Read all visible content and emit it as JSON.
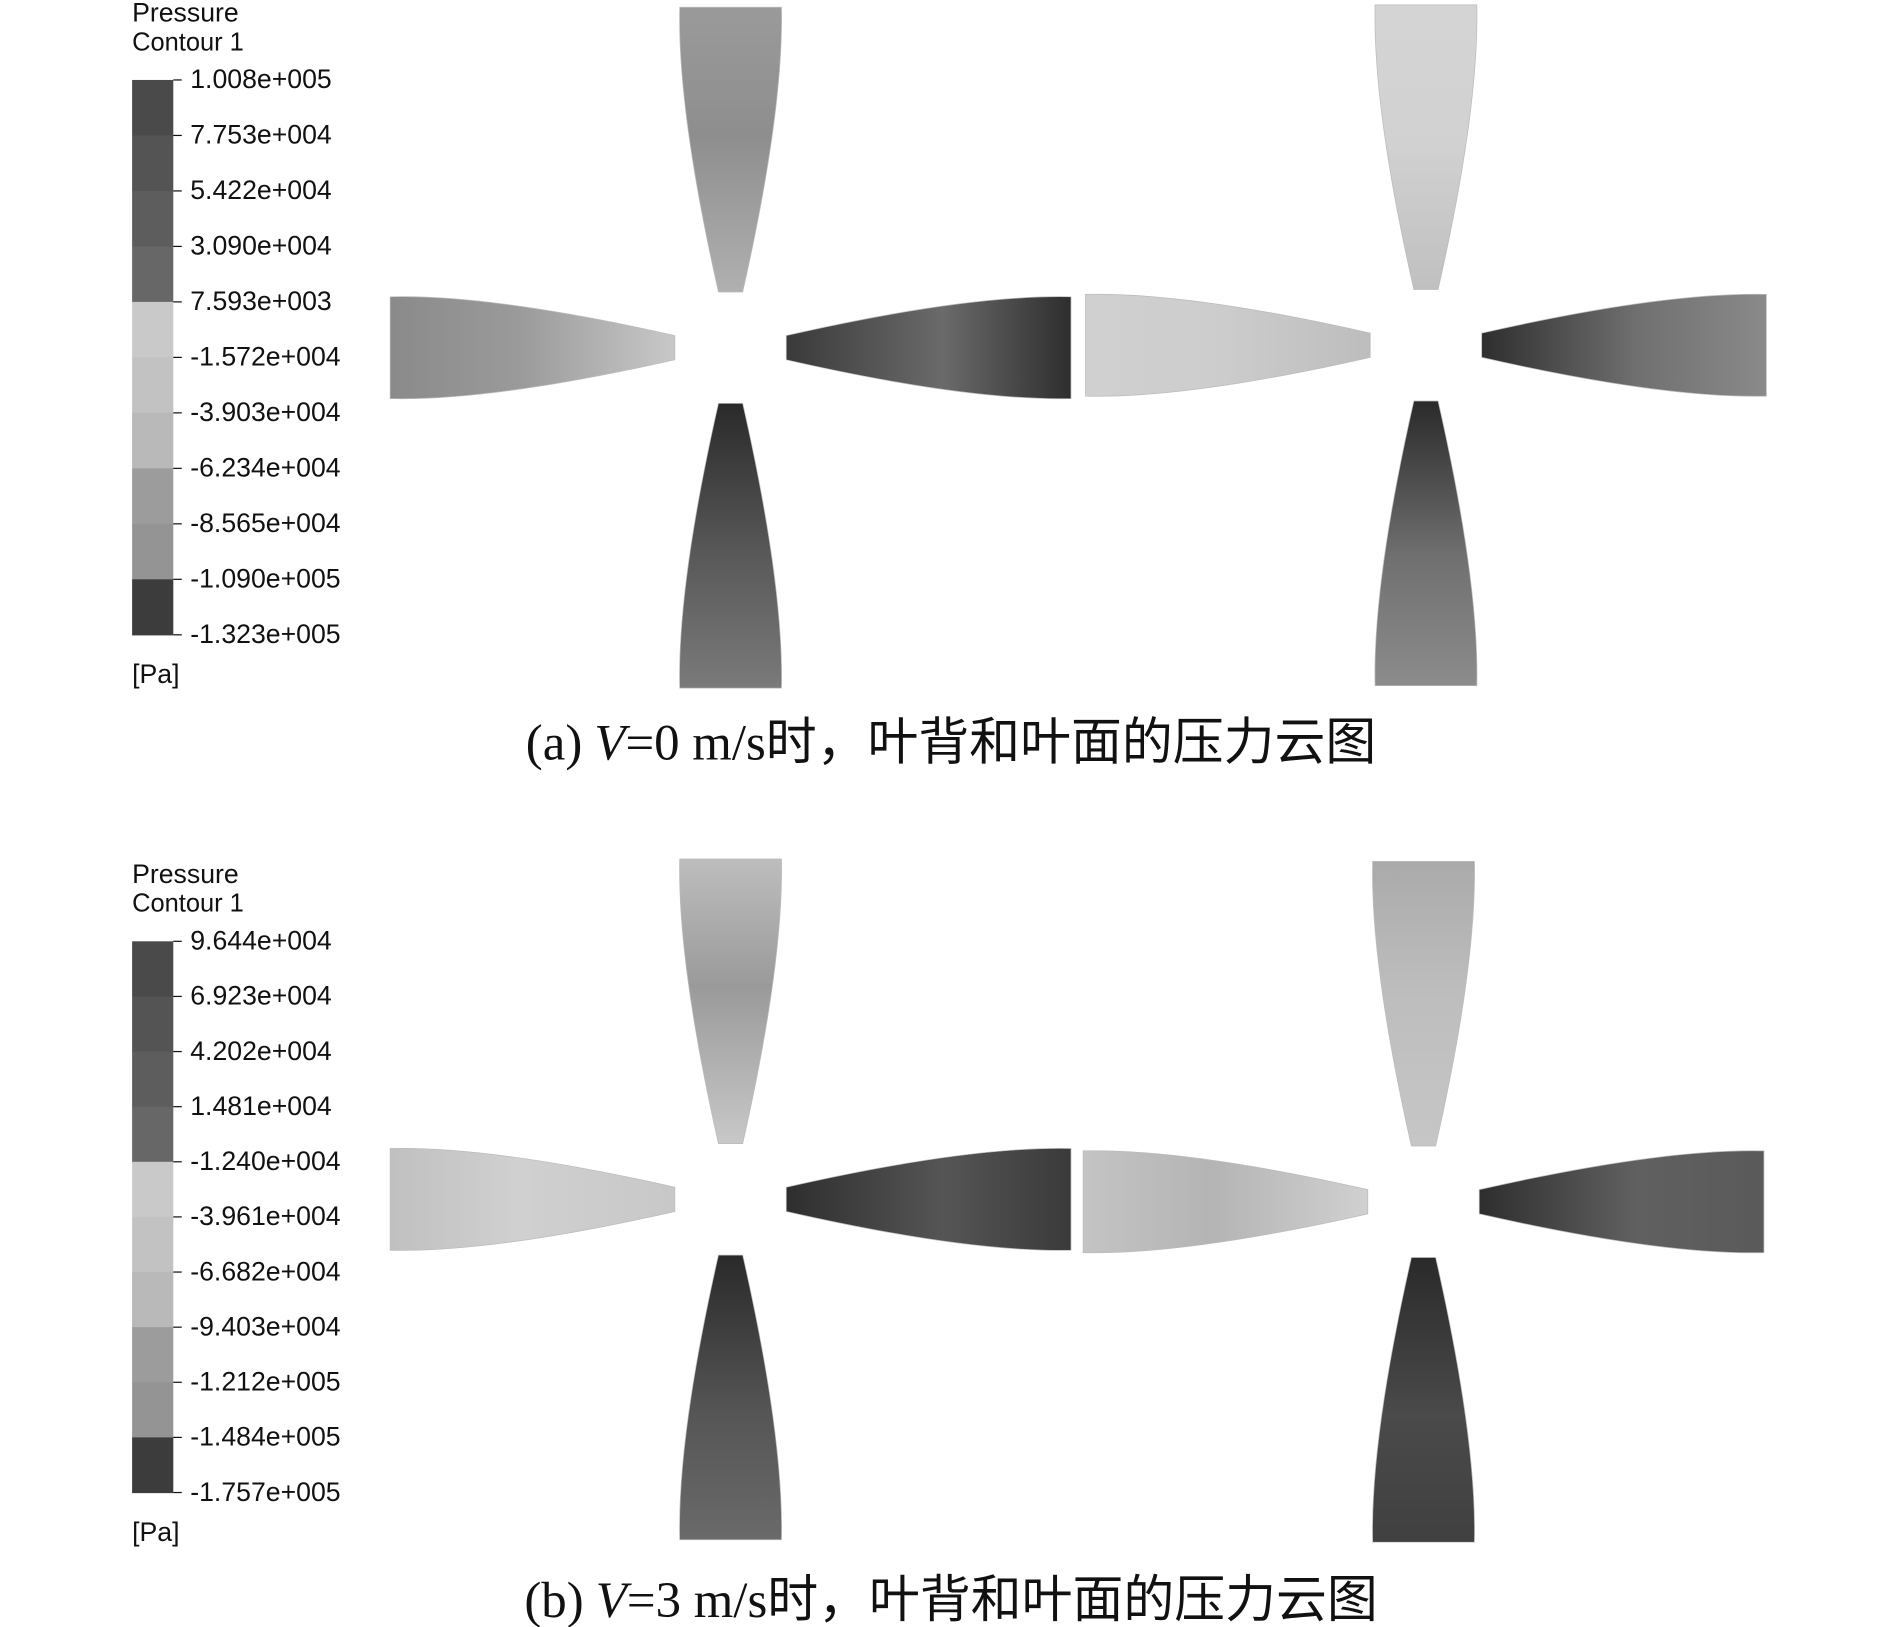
{
  "panels": [
    {
      "legend": {
        "title": "Pressure",
        "subtitle": "Contour 1",
        "ticks": [
          "1.008e+005",
          "7.753e+004",
          "5.422e+004",
          "3.090e+004",
          "7.593e+003",
          "-1.572e+004",
          "-3.903e+004",
          "-6.234e+004",
          "-8.565e+004",
          "-1.090e+005",
          "-1.323e+005"
        ],
        "unit": "[Pa]"
      },
      "caption": {
        "label": "(a)",
        "variable": "V",
        "text": "=0 m/s时，叶背和叶面的压力云图"
      }
    },
    {
      "legend": {
        "title": "Pressure",
        "subtitle": "Contour 1",
        "ticks": [
          "9.644e+004",
          "6.923e+004",
          "4.202e+004",
          "1.481e+004",
          "-1.240e+004",
          "-3.961e+004",
          "-6.682e+004",
          "-9.403e+004",
          "-1.212e+005",
          "-1.484e+005",
          "-1.757e+005"
        ],
        "unit": "[Pa]"
      },
      "caption": {
        "label": "(b)",
        "variable": "V",
        "text": "=3 m/s时，叶背和叶面的压力云图"
      }
    }
  ]
}
